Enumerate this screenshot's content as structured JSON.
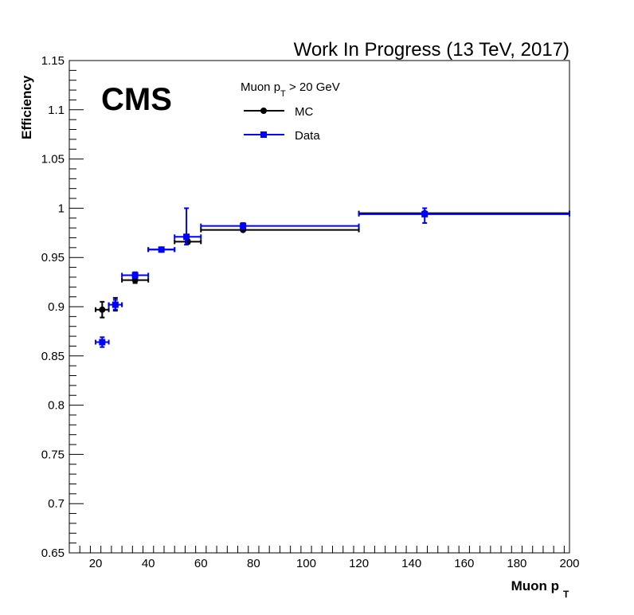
{
  "chart_data": {
    "type": "scatter",
    "title": "Work In Progress (13 TeV, 2017)",
    "cms_label": "CMS",
    "xlabel": "Muon p",
    "xlabel_sub": "T",
    "ylabel": "Efficiency",
    "xlim": [
      10,
      200
    ],
    "ylim": [
      0.65,
      1.15
    ],
    "x_ticks": [
      20,
      40,
      60,
      80,
      100,
      120,
      140,
      160,
      180,
      200
    ],
    "x_tick_labels": [
      "20",
      "40",
      "60",
      "80",
      "100",
      "120",
      "140",
      "160",
      "180",
      "200"
    ],
    "y_ticks": [
      0.65,
      0.7,
      0.75,
      0.8,
      0.85,
      0.9,
      0.95,
      1,
      1.05,
      1.1,
      1.15
    ],
    "y_tick_labels": [
      "0.65",
      "0.7",
      "0.75",
      "0.8",
      "0.85",
      "0.9",
      "0.95",
      "1",
      "1.05",
      "1.1",
      "1.15"
    ],
    "grid": false,
    "legend": {
      "header": "Muon p",
      "header_sub": "T",
      "header_suffix": " > 20 GeV",
      "placement": "top-center"
    },
    "series": [
      {
        "name": "MC",
        "color": "#000000",
        "marker": "circle",
        "points": [
          {
            "x": 22.5,
            "xlo": 20,
            "xhi": 25,
            "y": 0.897,
            "ylo": 0.889,
            "yhi": 0.905
          },
          {
            "x": 27.5,
            "xlo": 25,
            "xhi": 30,
            "y": 0.902,
            "ylo": 0.896,
            "yhi": 0.909
          },
          {
            "x": 35,
            "xlo": 30,
            "xhi": 40,
            "y": 0.927,
            "ylo": 0.924,
            "yhi": 0.93
          },
          {
            "x": 45,
            "xlo": 40,
            "xhi": 50,
            "y": 0.958,
            "ylo": 0.956,
            "yhi": 0.96
          },
          {
            "x": 55,
            "xlo": 50,
            "xhi": 60,
            "y": 0.966,
            "ylo": 0.964,
            "yhi": 0.968
          },
          {
            "x": 76,
            "xlo": 60,
            "xhi": 120,
            "y": 0.978,
            "ylo": 0.977,
            "yhi": 0.979
          },
          {
            "x": 145,
            "xlo": 120,
            "xhi": 200,
            "y": 0.995,
            "ylo": 0.994,
            "yhi": 0.996
          }
        ]
      },
      {
        "name": "Data",
        "color": "#0000ff",
        "marker": "square",
        "points": [
          {
            "x": 22.5,
            "xlo": 20,
            "xhi": 25,
            "y": 0.864,
            "ylo": 0.859,
            "yhi": 0.869
          },
          {
            "x": 27.5,
            "xlo": 25,
            "xhi": 30,
            "y": 0.902,
            "ylo": 0.897,
            "yhi": 0.907
          },
          {
            "x": 35,
            "xlo": 30,
            "xhi": 40,
            "y": 0.932,
            "ylo": 0.929,
            "yhi": 0.935
          },
          {
            "x": 45,
            "xlo": 40,
            "xhi": 50,
            "y": 0.958,
            "ylo": 0.956,
            "yhi": 0.96
          },
          {
            "x": 54.5,
            "xlo": 50,
            "xhi": 60,
            "y": 0.971,
            "ylo": 0.963,
            "yhi": 1.0
          },
          {
            "x": 76,
            "xlo": 60,
            "xhi": 120,
            "y": 0.982,
            "ylo": 0.979,
            "yhi": 0.985
          },
          {
            "x": 145,
            "xlo": 120,
            "xhi": 200,
            "y": 0.994,
            "ylo": 0.985,
            "yhi": 1.0
          }
        ]
      }
    ]
  }
}
